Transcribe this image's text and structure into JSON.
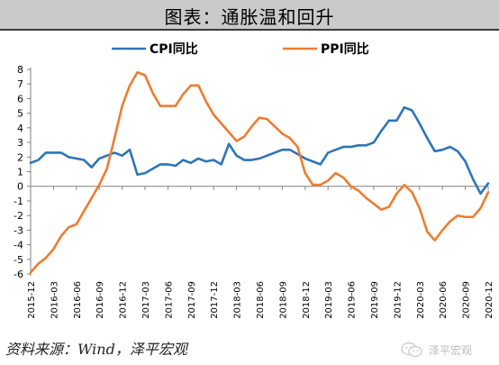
{
  "header": {
    "title": "图表：通胀温和回升"
  },
  "source": "资料来源：Wind，泽平宏观",
  "watermark": {
    "text": "泽平宏观",
    "icon": "wechat-icon"
  },
  "colors": {
    "cpi": "#2e75b6",
    "ppi": "#ed7d31",
    "axis": "#808080"
  },
  "chart_data": {
    "type": "line",
    "title": "",
    "xlabel": "",
    "ylabel": "",
    "ylim": [
      -6,
      8
    ],
    "yticks": [
      "8",
      "7",
      "6",
      "5",
      "4",
      "3",
      "2",
      "1",
      "0",
      "-1",
      "-2",
      "-3",
      "-4",
      "-5",
      "-6"
    ],
    "x": [
      "2015-12",
      "2016-01",
      "2016-02",
      "2016-03",
      "2016-04",
      "2016-05",
      "2016-06",
      "2016-07",
      "2016-08",
      "2016-09",
      "2016-10",
      "2016-11",
      "2016-12",
      "2017-01",
      "2017-02",
      "2017-03",
      "2017-04",
      "2017-05",
      "2017-06",
      "2017-07",
      "2017-08",
      "2017-09",
      "2017-10",
      "2017-11",
      "2017-12",
      "2018-01",
      "2018-02",
      "2018-03",
      "2018-04",
      "2018-05",
      "2018-06",
      "2018-07",
      "2018-08",
      "2018-09",
      "2018-10",
      "2018-11",
      "2018-12",
      "2019-01",
      "2019-02",
      "2019-03",
      "2019-04",
      "2019-05",
      "2019-06",
      "2019-07",
      "2019-08",
      "2019-09",
      "2019-10",
      "2019-11",
      "2019-12",
      "2020-01",
      "2020-02",
      "2020-03",
      "2020-04",
      "2020-05",
      "2020-06",
      "2020-07",
      "2020-08",
      "2020-09",
      "2020-10",
      "2020-11",
      "2020-12"
    ],
    "xtick_labels": [
      "2015-12",
      "2016-03",
      "2016-06",
      "2016-09",
      "2016-12",
      "2017-03",
      "2017-06",
      "2017-09",
      "2017-12",
      "2018-03",
      "2018-06",
      "2018-09",
      "2018-12",
      "2019-03",
      "2019-06",
      "2019-09",
      "2019-12",
      "2020-03",
      "2020-06",
      "2020-09",
      "2020-12"
    ],
    "legend": "top",
    "grid": false,
    "series": [
      {
        "name": "CPI同比",
        "values": [
          1.6,
          1.8,
          2.3,
          2.3,
          2.3,
          2.0,
          1.9,
          1.8,
          1.3,
          1.9,
          2.1,
          2.3,
          2.1,
          2.5,
          0.8,
          0.9,
          1.2,
          1.5,
          1.5,
          1.4,
          1.8,
          1.6,
          1.9,
          1.7,
          1.8,
          1.5,
          2.9,
          2.1,
          1.8,
          1.8,
          1.9,
          2.1,
          2.3,
          2.5,
          2.5,
          2.2,
          1.9,
          1.7,
          1.5,
          2.3,
          2.5,
          2.7,
          2.7,
          2.8,
          2.8,
          3.0,
          3.8,
          4.5,
          4.5,
          5.4,
          5.2,
          4.3,
          3.3,
          2.4,
          2.5,
          2.7,
          2.4,
          1.7,
          0.5,
          -0.5,
          0.2
        ]
      },
      {
        "name": "PPI同比",
        "values": [
          -5.9,
          -5.3,
          -4.9,
          -4.3,
          -3.4,
          -2.8,
          -2.6,
          -1.7,
          -0.8,
          0.1,
          1.2,
          3.3,
          5.5,
          6.9,
          7.8,
          7.6,
          6.4,
          5.5,
          5.5,
          5.5,
          6.3,
          6.9,
          6.9,
          5.8,
          4.9,
          4.3,
          3.7,
          3.1,
          3.4,
          4.1,
          4.7,
          4.6,
          4.1,
          3.6,
          3.3,
          2.7,
          0.9,
          0.1,
          0.1,
          0.4,
          0.9,
          0.6,
          0.0,
          -0.3,
          -0.8,
          -1.2,
          -1.6,
          -1.4,
          -0.5,
          0.1,
          -0.4,
          -1.5,
          -3.1,
          -3.7,
          -3.0,
          -2.4,
          -2.0,
          -2.1,
          -2.1,
          -1.5,
          -0.4
        ]
      }
    ]
  }
}
